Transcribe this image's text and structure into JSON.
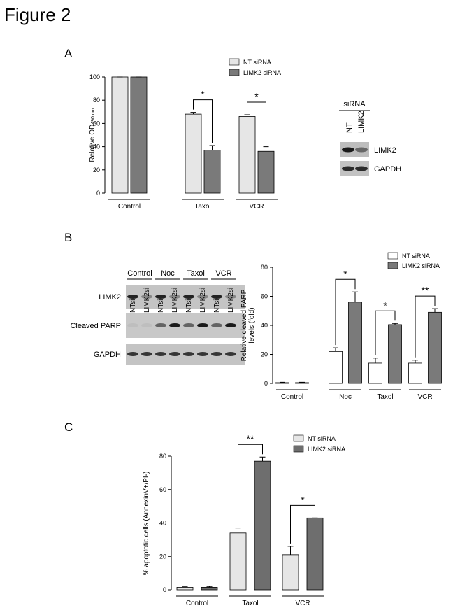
{
  "title": "Figure 2",
  "panels": [
    "A",
    "B",
    "C"
  ],
  "blot_a": {
    "header": "siRNA",
    "lanes": [
      "NT",
      "LIMK2"
    ],
    "rows": [
      "LIMK2",
      "GAPDH"
    ]
  },
  "blot_b": {
    "groups": [
      "Control",
      "Noc",
      "Taxol",
      "VCR"
    ],
    "lanes": [
      "NTsi",
      "LIMK2si",
      "NTsi",
      "LIMK2si",
      "NTsi",
      "LIMK2si",
      "NTsi",
      "LIMK2si"
    ],
    "rows": [
      "LIMK2",
      "Cleaved PARP",
      "GAPDH"
    ]
  },
  "chart_data": [
    {
      "type": "bar",
      "ylabel": "Relative OD",
      "ylabel_sub": "490 nm",
      "categories": [
        "Control",
        "Taxol",
        "VCR"
      ],
      "series": [
        {
          "name": "NT siRNA",
          "color": "#e6e6e6",
          "values": [
            100,
            68,
            66
          ],
          "errors": [
            0,
            1.5,
            1.5
          ]
        },
        {
          "name": "LIMK2 siRNA",
          "color": "#7a7a7a",
          "values": [
            100,
            37,
            36
          ],
          "errors": [
            0,
            4,
            4
          ]
        }
      ],
      "significance": [
        null,
        "*",
        "*"
      ],
      "ylim": [
        0,
        100
      ],
      "yticks": [
        0,
        20,
        40,
        60,
        80,
        100
      ],
      "grid": false
    },
    {
      "type": "bar",
      "ylabel": [
        "Relative cleaved PARP",
        "levels (fold)"
      ],
      "categories": [
        "Control",
        "Noc",
        "Taxol",
        "VCR"
      ],
      "series": [
        {
          "name": "NT siRNA",
          "color": "#ffffff",
          "values": [
            0.5,
            22,
            14,
            14
          ],
          "errors": [
            0.3,
            2.5,
            3.5,
            2
          ]
        },
        {
          "name": "LIMK2 siRNA",
          "color": "#7a7a7a",
          "values": [
            0.5,
            56,
            40.5,
            49
          ],
          "errors": [
            0.3,
            7,
            0.8,
            2.5
          ]
        }
      ],
      "significance": [
        null,
        "*",
        "*",
        "**"
      ],
      "ylim": [
        0,
        80
      ],
      "yticks": [
        0,
        20,
        40,
        60,
        80
      ],
      "grid": false
    },
    {
      "type": "bar",
      "ylabel": "% apoptotic cells (AnnexinV+/PI-)",
      "categories": [
        "Control",
        "Taxol",
        "VCR"
      ],
      "series": [
        {
          "name": "NT siRNA",
          "color": "#e6e6e6",
          "values": [
            1.5,
            34,
            21
          ],
          "errors": [
            0.5,
            3,
            5
          ]
        },
        {
          "name": "LIMK2 siRNA",
          "color": "#6e6e6e",
          "values": [
            1.5,
            77,
            43
          ],
          "errors": [
            0.5,
            2.5,
            0
          ]
        }
      ],
      "significance": [
        null,
        "**",
        "*"
      ],
      "ylim": [
        0,
        80
      ],
      "yticks": [
        0,
        20,
        40,
        60,
        80
      ],
      "grid": false
    }
  ]
}
